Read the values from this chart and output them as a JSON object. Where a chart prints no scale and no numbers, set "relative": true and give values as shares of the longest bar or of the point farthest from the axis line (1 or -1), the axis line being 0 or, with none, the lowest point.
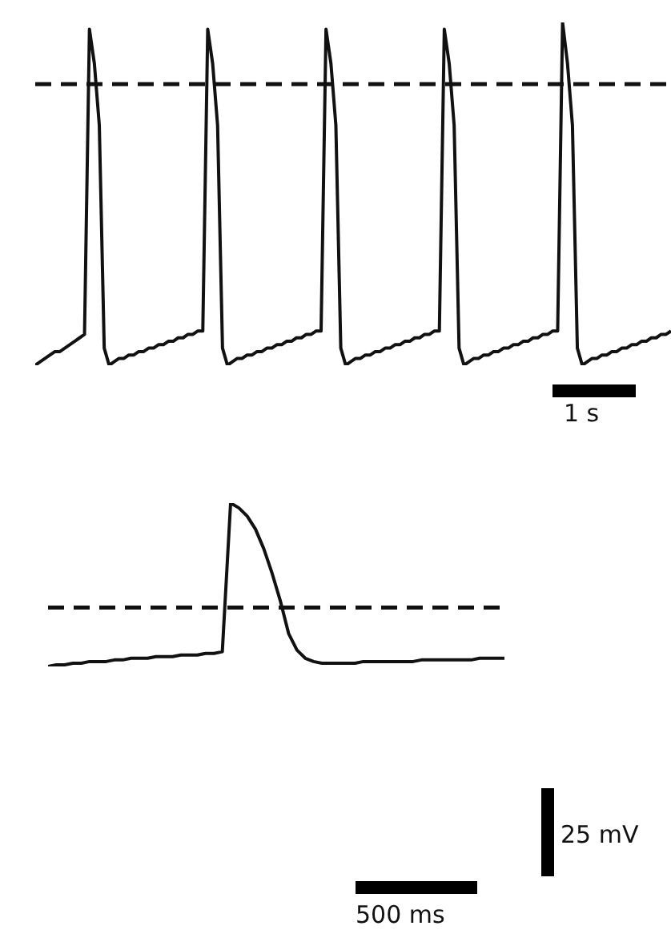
{
  "chart_data": [
    {
      "type": "line",
      "relative": true,
      "categories": [
        null,
        null,
        null,
        null,
        null,
        null,
        null,
        null,
        null,
        null,
        null,
        null,
        null,
        null,
        null,
        null,
        null,
        null,
        null,
        null,
        null,
        null,
        null,
        null,
        null,
        null,
        null,
        null,
        null,
        null,
        null,
        null,
        null,
        null,
        null,
        null,
        null,
        null,
        null,
        null,
        null,
        null,
        null,
        null,
        null,
        null,
        null,
        null,
        null,
        null,
        null,
        null,
        null,
        null,
        null,
        null,
        null,
        null,
        null,
        null,
        null,
        null,
        null,
        null,
        null,
        null,
        null,
        null,
        null,
        null,
        null,
        null,
        null,
        null,
        null,
        null,
        null,
        null,
        null,
        null,
        null,
        null,
        null,
        null,
        null,
        null,
        null,
        null,
        null,
        null,
        null,
        null,
        null,
        null,
        null,
        null,
        null,
        null,
        null,
        null,
        null,
        null,
        null,
        null,
        null,
        null,
        null,
        null,
        null,
        null,
        null,
        null,
        null,
        null,
        null,
        null,
        null,
        null,
        null,
        null,
        null,
        null,
        null,
        null,
        null,
        null,
        null,
        null,
        null,
        null
      ],
      "series": [
        {
          "color": "#111111",
          "values": [
            0.0,
            0.01,
            0.02,
            0.03,
            0.04,
            0.04,
            0.05,
            0.06,
            0.07,
            0.08,
            0.09,
            0.98,
            0.88,
            0.7,
            0.05,
            0.0,
            0.01,
            0.02,
            0.02,
            0.03,
            0.03,
            0.04,
            0.04,
            0.05,
            0.05,
            0.06,
            0.06,
            0.07,
            0.07,
            0.08,
            0.08,
            0.09,
            0.09,
            0.1,
            0.1,
            0.98,
            0.88,
            0.7,
            0.05,
            0.0,
            0.01,
            0.02,
            0.02,
            0.03,
            0.03,
            0.04,
            0.04,
            0.05,
            0.05,
            0.06,
            0.06,
            0.07,
            0.07,
            0.08,
            0.08,
            0.09,
            0.09,
            0.1,
            0.1,
            0.98,
            0.88,
            0.7,
            0.05,
            0.0,
            0.01,
            0.02,
            0.02,
            0.03,
            0.03,
            0.04,
            0.04,
            0.05,
            0.05,
            0.06,
            0.06,
            0.07,
            0.07,
            0.08,
            0.08,
            0.09,
            0.09,
            0.1,
            0.1,
            0.98,
            0.88,
            0.7,
            0.05,
            0.0,
            0.01,
            0.02,
            0.02,
            0.03,
            0.03,
            0.04,
            0.04,
            0.05,
            0.05,
            0.06,
            0.06,
            0.07,
            0.07,
            0.08,
            0.08,
            0.09,
            0.09,
            0.1,
            0.1,
            1.0,
            0.88,
            0.7,
            0.05,
            0.0,
            0.01,
            0.02,
            0.02,
            0.03,
            0.03,
            0.04,
            0.04,
            0.05,
            0.05,
            0.06,
            0.06,
            0.07,
            0.07,
            0.08,
            0.08,
            0.09,
            0.09,
            0.1
          ]
        }
      ],
      "marker": "none",
      "line_style": "solid",
      "ref_lines": [
        {
          "axis": "y",
          "value": 0.82,
          "line_style": "dashed",
          "color": "#111111"
        }
      ],
      "annotations": [
        "1 s"
      ]
    },
    {
      "type": "line",
      "relative": true,
      "categories": [
        null,
        null,
        null,
        null,
        null,
        null,
        null,
        null,
        null,
        null,
        null,
        null,
        null,
        null,
        null,
        null,
        null,
        null,
        null,
        null,
        null,
        null,
        null,
        null,
        null,
        null,
        null,
        null,
        null,
        null,
        null,
        null,
        null,
        null,
        null,
        null,
        null,
        null,
        null,
        null,
        null,
        null,
        null,
        null,
        null,
        null,
        null,
        null,
        null,
        null,
        null,
        null,
        null,
        null,
        null,
        null
      ],
      "series": [
        {
          "color": "#111111",
          "values": [
            0.0,
            0.01,
            0.01,
            0.02,
            0.02,
            0.03,
            0.03,
            0.03,
            0.04,
            0.04,
            0.05,
            0.05,
            0.05,
            0.06,
            0.06,
            0.06,
            0.07,
            0.07,
            0.07,
            0.08,
            0.08,
            0.09,
            1.0,
            0.97,
            0.92,
            0.84,
            0.72,
            0.57,
            0.4,
            0.2,
            0.1,
            0.05,
            0.03,
            0.02,
            0.02,
            0.02,
            0.02,
            0.02,
            0.03,
            0.03,
            0.03,
            0.03,
            0.03,
            0.03,
            0.03,
            0.04,
            0.04,
            0.04,
            0.04,
            0.04,
            0.04,
            0.04,
            0.05,
            0.05,
            0.05,
            0.05
          ]
        }
      ],
      "marker": "none",
      "line_style": "solid",
      "ref_lines": [
        {
          "axis": "y",
          "value": 0.36,
          "line_style": "dashed",
          "color": "#111111"
        }
      ],
      "annotations": [
        "500 ms",
        "25 mV"
      ]
    }
  ]
}
